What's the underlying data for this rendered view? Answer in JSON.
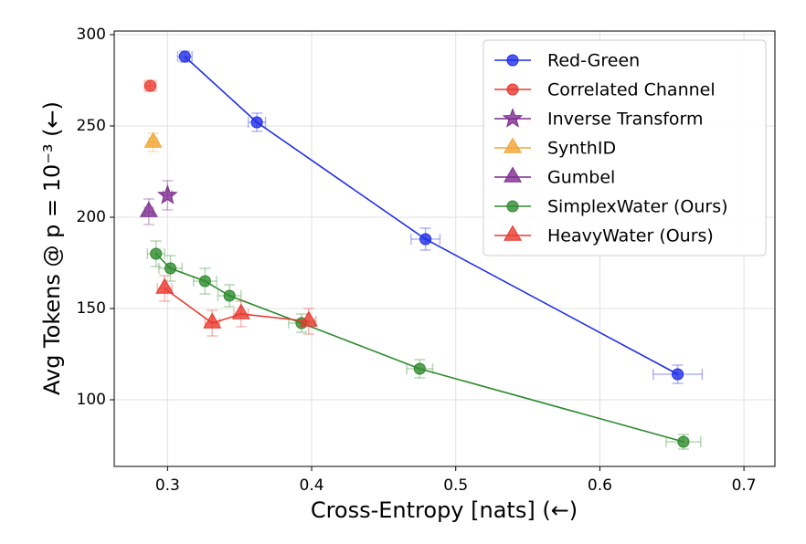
{
  "chart_data": {
    "type": "line",
    "xlabel": "Cross-Entropy [nats] (←)",
    "ylabel": "Avg Tokens @ p = 10⁻³ (←)",
    "xlim": [
      0.263,
      0.7215
    ],
    "ylim": [
      63.5,
      302
    ],
    "xticks": [
      0.3,
      0.4,
      0.5,
      0.6,
      0.7
    ],
    "yticks": [
      100,
      150,
      200,
      250,
      300
    ],
    "grid": true,
    "legend": "upper right",
    "series": [
      {
        "name": "Red-Green",
        "color": "#1f2ee8",
        "marker": "circle",
        "line": true,
        "x": [
          0.312,
          0.362,
          0.479,
          0.654
        ],
        "values": [
          288,
          252,
          188,
          114
        ],
        "xerr": [
          0.005,
          0.006,
          0.01,
          0.017
        ],
        "yerr": [
          3,
          5,
          6,
          5
        ]
      },
      {
        "name": "Correlated Channel",
        "color": "#e8392e",
        "marker": "circle",
        "line": false,
        "x": [
          0.288
        ],
        "values": [
          272
        ],
        "xerr": [
          0.004
        ],
        "yerr": [
          3
        ]
      },
      {
        "name": "Inverse Transform",
        "color": "#7d2c8e",
        "marker": "star",
        "line": false,
        "x": [
          0.3
        ],
        "values": [
          212
        ],
        "xerr": [
          0.003
        ],
        "yerr": [
          8
        ]
      },
      {
        "name": "SynthID",
        "color": "#f2a531",
        "marker": "triangle",
        "line": false,
        "x": [
          0.29
        ],
        "values": [
          241
        ],
        "xerr": [
          0.003
        ],
        "yerr": [
          5
        ]
      },
      {
        "name": "Gumbel",
        "color": "#7d2c8e",
        "marker": "triangle",
        "line": false,
        "x": [
          0.287
        ],
        "values": [
          203
        ],
        "xerr": [
          0.003
        ],
        "yerr": [
          7
        ]
      },
      {
        "name": "SimplexWater (Ours)",
        "color": "#2e8b2e",
        "marker": "circle",
        "line": true,
        "x": [
          0.292,
          0.302,
          0.326,
          0.343,
          0.393,
          0.475,
          0.658
        ],
        "values": [
          180,
          172,
          165,
          157,
          142,
          117,
          77
        ],
        "xerr": [
          0.006,
          0.008,
          0.008,
          0.008,
          0.009,
          0.009,
          0.012
        ],
        "yerr": [
          7,
          7,
          7,
          6,
          5,
          5,
          4
        ]
      },
      {
        "name": "HeavyWater (Ours)",
        "color": "#e8392e",
        "marker": "triangle",
        "line": true,
        "x": [
          0.298,
          0.331,
          0.351,
          0.398
        ],
        "values": [
          161,
          142,
          147,
          143
        ],
        "xerr": [
          0.005,
          0.005,
          0.005,
          0.005
        ],
        "yerr": [
          7,
          7,
          7,
          7
        ]
      }
    ]
  }
}
